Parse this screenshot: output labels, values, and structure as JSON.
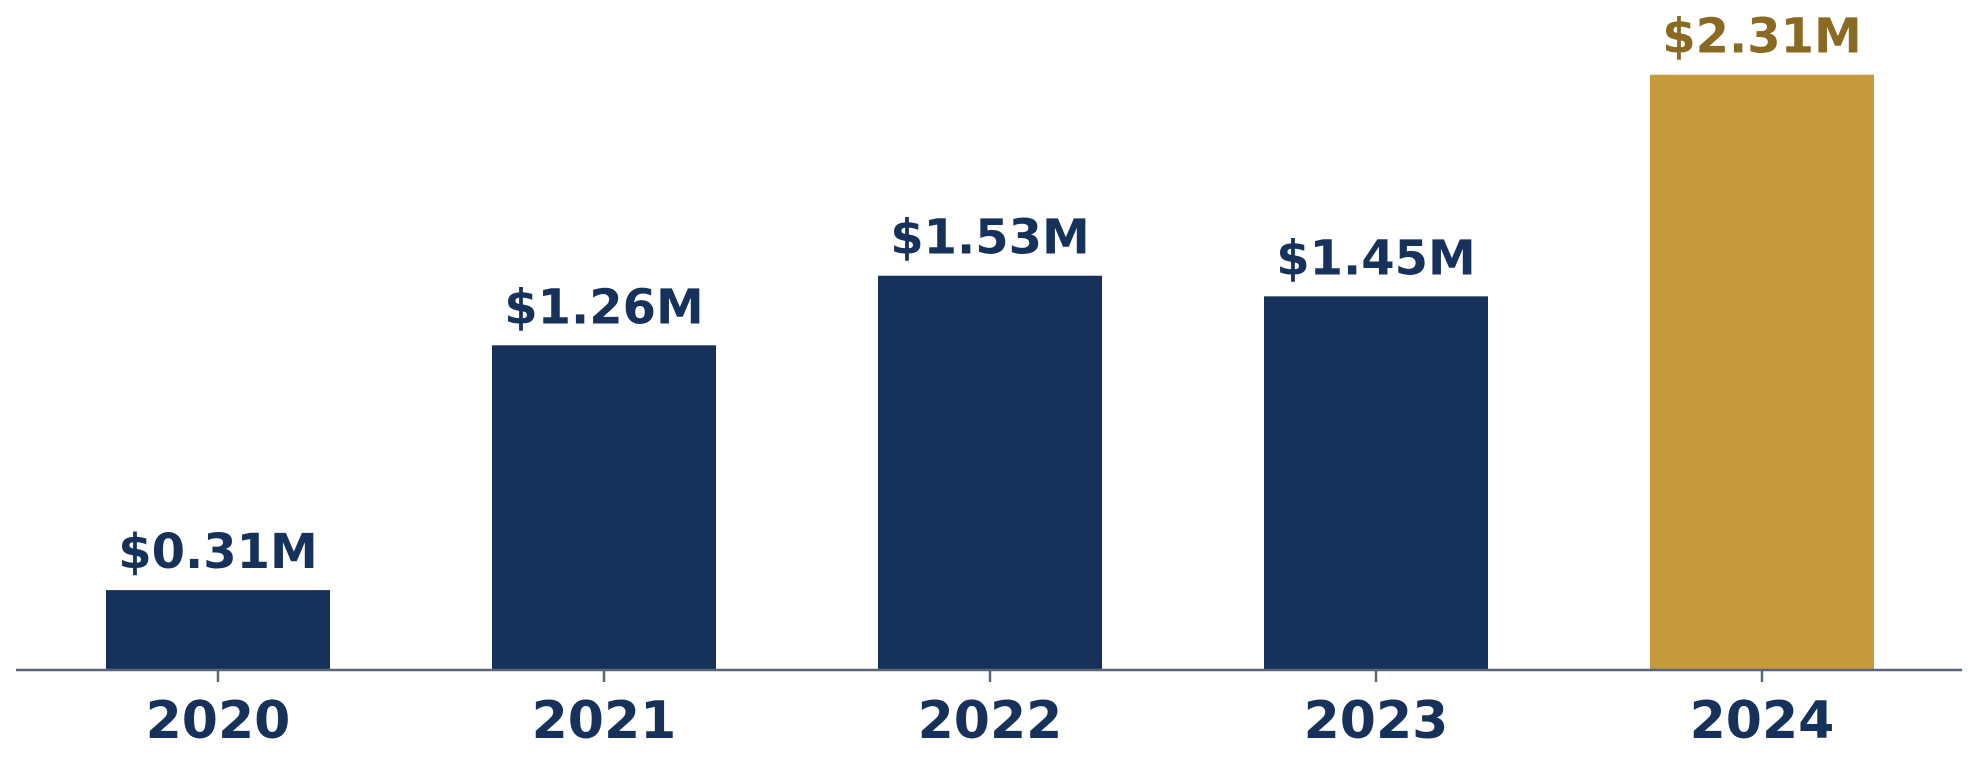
{
  "chart_data": {
    "type": "bar",
    "categories": [
      "2020",
      "2021",
      "2022",
      "2023",
      "2024"
    ],
    "values": [
      0.31,
      1.26,
      1.53,
      1.45,
      2.31
    ],
    "value_labels": [
      "$0.31M",
      "$1.26M",
      "$1.53M",
      "$1.45M",
      "$2.31M"
    ],
    "title": "",
    "xlabel": "",
    "ylabel": "",
    "ylim": [
      0,
      2.6
    ],
    "grid": false,
    "highlight_index": 4
  },
  "colors": {
    "bar": "#17325a",
    "highlight_bar": "#c49a3c",
    "label": "#17325a",
    "highlight_label": "#8a6a22",
    "axis": "#5a6678",
    "tick_label": "#17325a"
  }
}
